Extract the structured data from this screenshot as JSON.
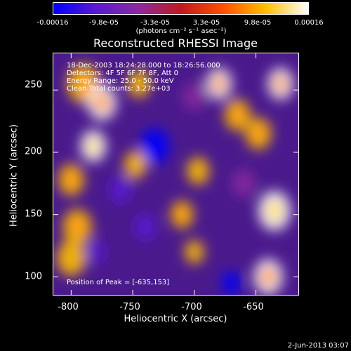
{
  "colorbar": {
    "ticks": [
      "-0.00016",
      "-9.8e-05",
      "-3.3e-05",
      "3.3e-05",
      "9.8e-05",
      "0.00016"
    ],
    "units": "(photons cm⁻² s⁻¹ asec⁻²)",
    "range": [
      -0.00016,
      0.00016
    ],
    "palette": [
      "#0000ff",
      "#5a1ad0",
      "#8a2aa0",
      "#c01820",
      "#ff5000",
      "#ffc000",
      "#ffffff"
    ]
  },
  "annotations": {
    "time_range": "18-Dec-2003 18:24:28.000 to 18:26:56.000",
    "detectors": "Detectors: 4F 5F 6F 7F 8F, Att 0",
    "energy": "Energy Range: 25.0 - 50.0 keV",
    "clean": "Clean     Total counts: 3.27e+03",
    "peak": "Position of Peak = [-635,153]"
  },
  "footer": "2-Jun-2013 03:07",
  "chart_data": {
    "type": "heatmap",
    "title": "Reconstructed RHESSI Image",
    "xlabel": "Heliocentric X (arcsec)",
    "ylabel": "Heliocentric Y (arcsec)",
    "xticks": [
      "-800",
      "-750",
      "-700",
      "-650"
    ],
    "yticks": [
      "100",
      "150",
      "200",
      "250"
    ],
    "xlim": [
      -815,
      -615
    ],
    "ylim": [
      85,
      280
    ],
    "peak": [
      -635,
      153
    ],
    "blobs": [
      {
        "x": -790,
        "y": 255,
        "v": 0.8,
        "s": 10
      },
      {
        "x": -775,
        "y": 240,
        "v": 0.9,
        "s": 9
      },
      {
        "x": -782,
        "y": 205,
        "v": 0.95,
        "s": 8
      },
      {
        "x": -800,
        "y": 178,
        "v": 0.75,
        "s": 8
      },
      {
        "x": -795,
        "y": 140,
        "v": 0.8,
        "s": 9
      },
      {
        "x": -800,
        "y": 115,
        "v": 0.7,
        "s": 9
      },
      {
        "x": -745,
        "y": 255,
        "v": 0.6,
        "s": 7
      },
      {
        "x": -748,
        "y": 190,
        "v": 0.55,
        "s": 7
      },
      {
        "x": -710,
        "y": 150,
        "v": 0.8,
        "s": 7
      },
      {
        "x": -697,
        "y": 185,
        "v": 0.7,
        "s": 7
      },
      {
        "x": -700,
        "y": 120,
        "v": 0.6,
        "s": 6
      },
      {
        "x": -680,
        "y": 255,
        "v": 0.85,
        "s": 8
      },
      {
        "x": -665,
        "y": 230,
        "v": 0.75,
        "s": 8
      },
      {
        "x": -648,
        "y": 215,
        "v": 0.8,
        "s": 8
      },
      {
        "x": -635,
        "y": 153,
        "v": 1.0,
        "s": 10
      },
      {
        "x": -630,
        "y": 255,
        "v": 0.9,
        "s": 8
      },
      {
        "x": -640,
        "y": 100,
        "v": 0.85,
        "s": 9
      },
      {
        "x": -732,
        "y": 205,
        "v": -0.95,
        "s": 9
      },
      {
        "x": -760,
        "y": 170,
        "v": -0.6,
        "s": 7
      },
      {
        "x": -780,
        "y": 120,
        "v": -0.7,
        "s": 6
      },
      {
        "x": -670,
        "y": 95,
        "v": -0.85,
        "s": 6
      },
      {
        "x": -700,
        "y": 245,
        "v": -0.5,
        "s": 7
      },
      {
        "x": -740,
        "y": 140,
        "v": -0.55,
        "s": 7
      },
      {
        "x": -660,
        "y": 175,
        "v": -0.5,
        "s": 7
      }
    ]
  }
}
